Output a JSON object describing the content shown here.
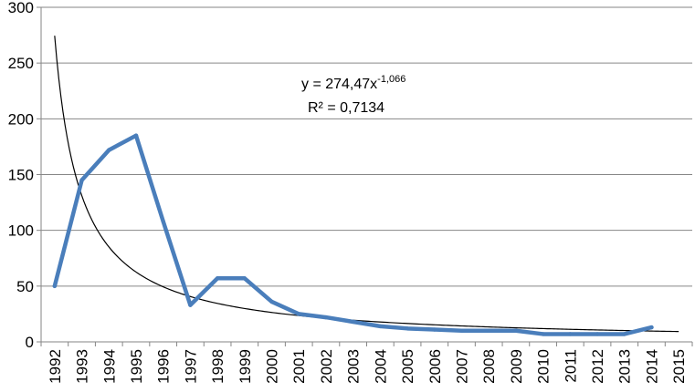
{
  "chart_data": {
    "type": "line",
    "categories": [
      "1992",
      "1993",
      "1994",
      "1995",
      "1996",
      "1997",
      "1998",
      "1999",
      "2000",
      "2001",
      "2002",
      "2003",
      "2004",
      "2005",
      "2006",
      "2007",
      "2008",
      "2009",
      "2010",
      "2011",
      "2012",
      "2013",
      "2014",
      "2015"
    ],
    "series": [
      {
        "values": [
          50,
          145,
          172,
          185,
          108,
          33,
          57,
          57,
          36,
          25,
          22,
          18,
          14,
          12,
          11,
          10,
          10,
          10,
          7,
          7,
          7,
          7,
          13,
          null
        ],
        "color": "#4a7ebb"
      }
    ],
    "trendline": {
      "type": "power",
      "coefficient": 274.47,
      "exponent": -1.066,
      "color": "#000000"
    },
    "yticks": [
      "0",
      "50",
      "100",
      "150",
      "200",
      "250",
      "300"
    ],
    "ylim": [
      0,
      300
    ],
    "title": "",
    "xlabel": "",
    "ylabel": "",
    "grid": "horizontal",
    "legend": "none",
    "annotation": {
      "equation_prefix": "y = 274,47x",
      "equation_exponent": "-1,066",
      "r_squared": "R² = 0,7134"
    }
  }
}
